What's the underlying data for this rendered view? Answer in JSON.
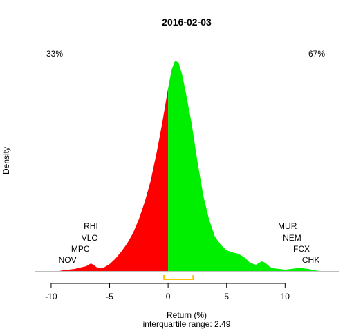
{
  "chart_data": {
    "type": "area",
    "title": "2016-02-03",
    "xlabel": "Return (%)",
    "subtitle_label": "interquartile range:",
    "iqr_value": "2.49",
    "ylabel": "Density",
    "xlim": [
      -11,
      14
    ],
    "ylim": [
      0,
      0.32
    ],
    "x_ticks": [
      -10,
      -5,
      0,
      5,
      10
    ],
    "split_at": 0,
    "negative_share": "33%",
    "positive_share": "67%",
    "colors": {
      "negative": "#ff0000",
      "positive": "#00ee00",
      "iqr": "#ffc000",
      "axis": "#000000",
      "baseline": "#bebebe"
    },
    "iqr": [
      -0.35,
      2.14
    ],
    "density": {
      "x": [
        -9.3,
        -9.0,
        -8.5,
        -8.0,
        -7.5,
        -7.0,
        -6.6,
        -6.3,
        -6.0,
        -5.5,
        -5.0,
        -4.5,
        -4.0,
        -3.5,
        -3.0,
        -2.5,
        -2.0,
        -1.5,
        -1.0,
        -0.5,
        0,
        0.3,
        0.6,
        0.9,
        1.2,
        1.5,
        2.0,
        2.5,
        3.0,
        3.5,
        4.0,
        4.5,
        5.0,
        5.5,
        6.0,
        6.5,
        7.0,
        7.5,
        8.0,
        8.3,
        8.7,
        9.0,
        9.5,
        10.0,
        10.5,
        11.0,
        11.5,
        12.0,
        12.5,
        13.0
      ],
      "y": [
        0.0,
        0.001,
        0.002,
        0.003,
        0.005,
        0.007,
        0.011,
        0.008,
        0.004,
        0.005,
        0.01,
        0.018,
        0.028,
        0.04,
        0.055,
        0.075,
        0.1,
        0.13,
        0.17,
        0.215,
        0.265,
        0.292,
        0.305,
        0.302,
        0.285,
        0.26,
        0.215,
        0.16,
        0.11,
        0.075,
        0.05,
        0.038,
        0.03,
        0.027,
        0.025,
        0.02,
        0.012,
        0.009,
        0.014,
        0.012,
        0.006,
        0.004,
        0.003,
        0.002,
        0.003,
        0.004,
        0.004,
        0.003,
        0.001,
        0.0
      ]
    },
    "annotations_left": [
      {
        "label": "RHI",
        "x": -6.6,
        "y": 0.065
      },
      {
        "label": "VLO",
        "x": -6.7,
        "y": 0.048
      },
      {
        "label": "MPC",
        "x": -7.5,
        "y": 0.032
      },
      {
        "label": "NOV",
        "x": -8.6,
        "y": 0.016
      }
    ],
    "annotations_right": [
      {
        "label": "MUR",
        "x": 10.2,
        "y": 0.065
      },
      {
        "label": "NEM",
        "x": 10.6,
        "y": 0.048
      },
      {
        "label": "FCX",
        "x": 11.4,
        "y": 0.032
      },
      {
        "label": "CHK",
        "x": 12.2,
        "y": 0.016
      }
    ]
  }
}
